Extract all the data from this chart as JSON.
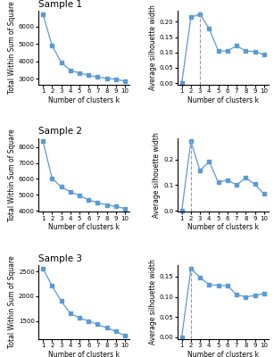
{
  "samples": [
    "Sample 1",
    "Sample 2",
    "Sample 3"
  ],
  "k": [
    1,
    2,
    3,
    4,
    5,
    6,
    7,
    8,
    9,
    10
  ],
  "wss": [
    [
      6700,
      4900,
      3950,
      3480,
      3340,
      3200,
      3100,
      3030,
      2980,
      2860
    ],
    [
      8350,
      6050,
      5500,
      5200,
      4950,
      4700,
      4500,
      4380,
      4280,
      4150
    ],
    [
      2560,
      2210,
      1900,
      1650,
      1560,
      1500,
      1430,
      1360,
      1290,
      1200
    ]
  ],
  "silhouette": [
    [
      0.0,
      0.215,
      0.225,
      0.178,
      0.105,
      0.105,
      0.122,
      0.105,
      0.103,
      0.093
    ],
    [
      0.0,
      0.27,
      0.155,
      0.193,
      0.11,
      0.12,
      0.1,
      0.128,
      0.103,
      0.065
    ],
    [
      0.0,
      0.17,
      0.148,
      0.13,
      0.128,
      0.128,
      0.105,
      0.1,
      0.103,
      0.108
    ]
  ],
  "vline_positions": [
    3,
    2,
    2
  ],
  "line_color": "#5b9bd5",
  "marker": "s",
  "markersize": 2.5,
  "linewidth": 0.9,
  "vline_color": "#9999bb",
  "ylabel_wss": "Total Within Sum of Square",
  "ylabel_sil": "Average silhouette width",
  "xlabel": "Number of clusters k",
  "title_fontsize": 7.5,
  "label_fontsize": 5.5,
  "tick_fontsize": 5
}
